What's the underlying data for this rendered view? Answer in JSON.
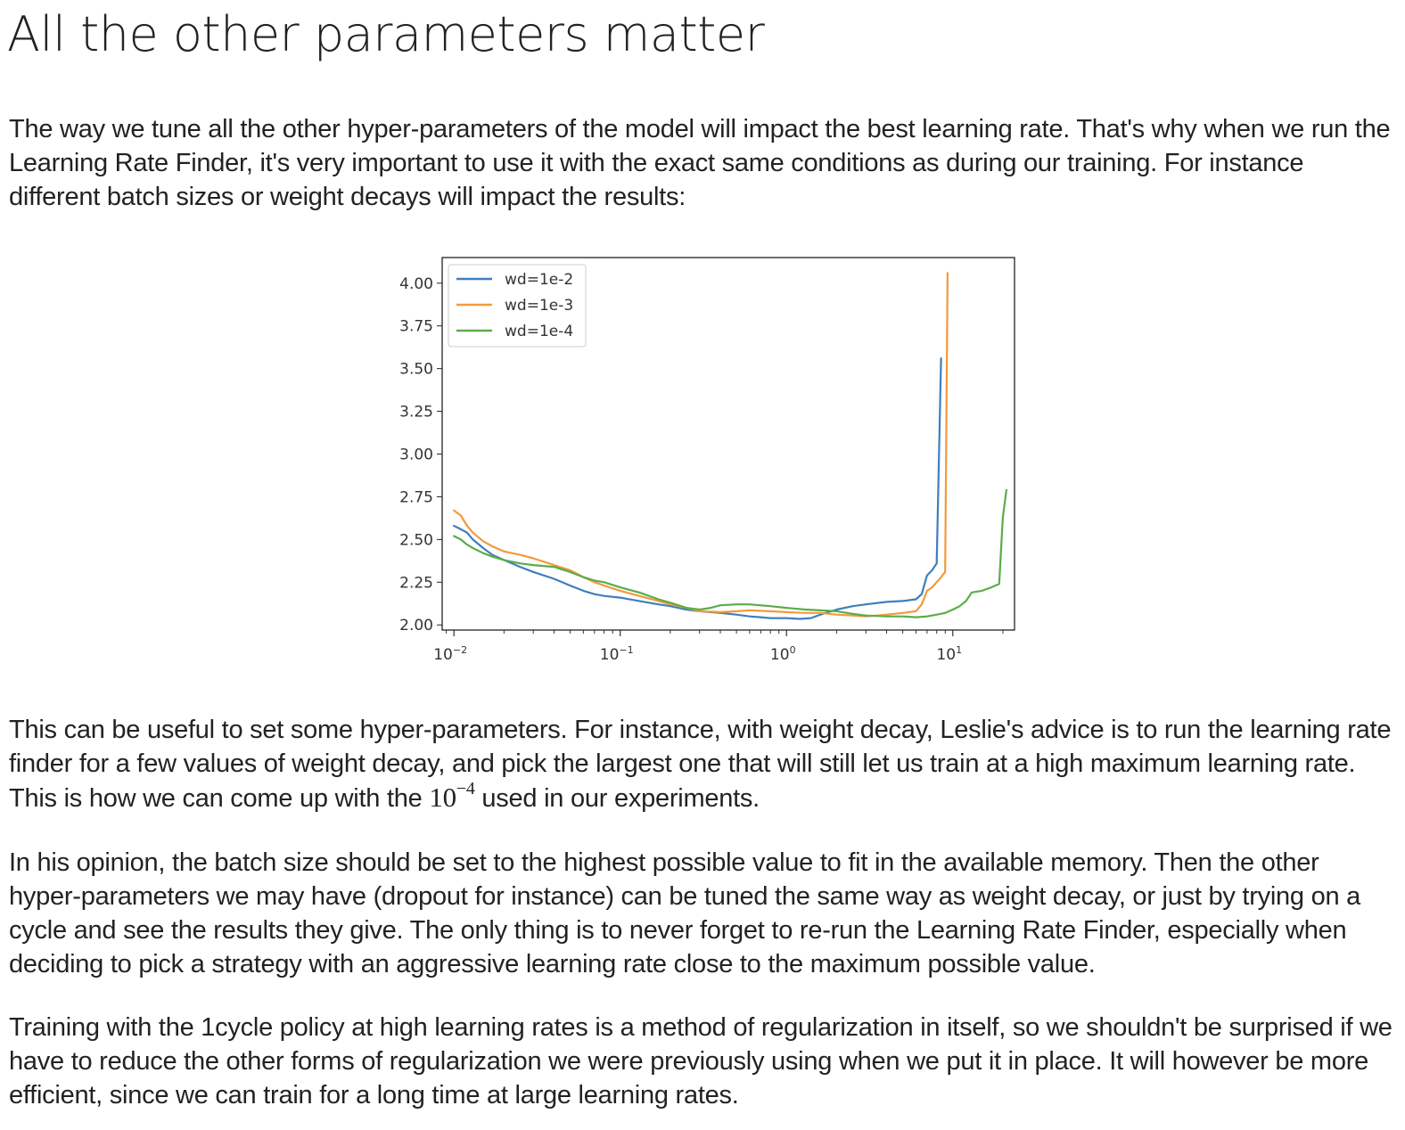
{
  "heading": "All the other parameters matter",
  "paragraphs": {
    "p1": "The way we tune all the other hyper-parameters of the model will impact the best learning rate. That's why when we run the Learning Rate Finder, it's very important to use it with the exact same conditions as during our training. For instance different batch sizes or weight decays will impact the results:",
    "p2_before": "This can be useful to set some hyper-parameters. For instance, with weight decay, Leslie's advice is to run the learning rate finder for a few values of weight decay, and pick the largest one that will still let us train at a high maximum learning rate. This is how we can come up with the ",
    "p2_math_base": "10",
    "p2_math_exp": "−4",
    "p2_after": " used in our experiments.",
    "p3": "In his opinion, the batch size should be set to the highest possible value to fit in the available memory. Then the other hyper-parameters we may have (dropout for instance) can be tuned the same way as weight decay, or just by trying on a cycle and see the results they give. The only thing is to never forget to re-run the Learning Rate Finder, especially when deciding to pick a strategy with an aggressive learning rate close to the maximum possible value.",
    "p4": "Training with the 1cycle policy at high learning rates is a method of regularization in itself, so we shouldn't be surprised if we have to reduce the other forms of regularization we were previously using when we put it in place. It will however be more efficient, since we can train for a long time at large learning rates."
  },
  "chart_data": {
    "type": "line",
    "title": "",
    "xlabel": "",
    "ylabel": "",
    "xscale": "log",
    "xlim": [
      0.0085,
      23.5
    ],
    "ylim": [
      1.97,
      4.15
    ],
    "yticks": [
      2.0,
      2.25,
      2.5,
      2.75,
      3.0,
      3.25,
      3.5,
      3.75,
      4.0
    ],
    "ytick_labels": [
      "2.00",
      "2.25",
      "2.50",
      "2.75",
      "3.00",
      "3.25",
      "3.50",
      "3.75",
      "4.00"
    ],
    "xticks": [
      0.01,
      0.1,
      1,
      10
    ],
    "xtick_labels": [
      {
        "base": "10",
        "exp": "−2"
      },
      {
        "base": "10",
        "exp": "−1"
      },
      {
        "base": "10",
        "exp": "0"
      },
      {
        "base": "10",
        "exp": "1"
      }
    ],
    "grid": false,
    "legend": "upper-left",
    "series": [
      {
        "name": "wd=1e-2",
        "color": "#3f7fbd",
        "x": [
          0.01,
          0.011,
          0.012,
          0.013,
          0.015,
          0.017,
          0.02,
          0.025,
          0.03,
          0.04,
          0.05,
          0.06,
          0.07,
          0.08,
          0.1,
          0.13,
          0.17,
          0.2,
          0.25,
          0.3,
          0.4,
          0.5,
          0.6,
          0.7,
          0.8,
          1.0,
          1.2,
          1.4,
          1.6,
          2.0,
          2.5,
          3.0,
          4.0,
          5.0,
          6.0,
          6.5,
          7.0,
          7.5,
          8.0,
          8.5
        ],
        "y": [
          2.58,
          2.56,
          2.54,
          2.5,
          2.45,
          2.41,
          2.38,
          2.34,
          2.31,
          2.27,
          2.23,
          2.2,
          2.18,
          2.17,
          2.16,
          2.14,
          2.12,
          2.11,
          2.09,
          2.08,
          2.07,
          2.06,
          2.05,
          2.045,
          2.04,
          2.04,
          2.035,
          2.04,
          2.06,
          2.09,
          2.11,
          2.12,
          2.135,
          2.14,
          2.15,
          2.18,
          2.29,
          2.32,
          2.36,
          3.56
        ]
      },
      {
        "name": "wd=1e-3",
        "color": "#f39a3a",
        "x": [
          0.01,
          0.011,
          0.012,
          0.013,
          0.015,
          0.017,
          0.02,
          0.025,
          0.03,
          0.04,
          0.05,
          0.06,
          0.07,
          0.08,
          0.1,
          0.13,
          0.17,
          0.2,
          0.25,
          0.3,
          0.4,
          0.5,
          0.6,
          0.8,
          1.0,
          1.3,
          1.6,
          2.0,
          2.5,
          3.0,
          3.5,
          4.0,
          5.0,
          6.0,
          6.5,
          7.0,
          7.5,
          8.0,
          8.5,
          9.0,
          9.3
        ],
        "y": [
          2.67,
          2.64,
          2.58,
          2.54,
          2.49,
          2.46,
          2.43,
          2.41,
          2.39,
          2.35,
          2.32,
          2.28,
          2.25,
          2.23,
          2.2,
          2.17,
          2.14,
          2.12,
          2.1,
          2.08,
          2.075,
          2.08,
          2.085,
          2.08,
          2.075,
          2.07,
          2.07,
          2.06,
          2.055,
          2.05,
          2.055,
          2.06,
          2.07,
          2.08,
          2.12,
          2.2,
          2.22,
          2.25,
          2.28,
          2.31,
          4.06
        ]
      },
      {
        "name": "wd=1e-4",
        "color": "#5aac4a",
        "x": [
          0.01,
          0.011,
          0.012,
          0.013,
          0.015,
          0.017,
          0.02,
          0.025,
          0.03,
          0.04,
          0.05,
          0.06,
          0.07,
          0.08,
          0.1,
          0.13,
          0.17,
          0.2,
          0.25,
          0.3,
          0.35,
          0.4,
          0.5,
          0.6,
          0.8,
          1.0,
          1.3,
          1.6,
          2.0,
          2.5,
          3.0,
          4.0,
          5.0,
          6.0,
          7.0,
          8.0,
          9.0,
          10.0,
          11.0,
          12.0,
          13.0,
          15.0,
          17.0,
          19.0,
          20.0,
          21.0
        ],
        "y": [
          2.52,
          2.5,
          2.47,
          2.45,
          2.42,
          2.4,
          2.38,
          2.36,
          2.35,
          2.34,
          2.31,
          2.28,
          2.26,
          2.25,
          2.22,
          2.19,
          2.15,
          2.13,
          2.1,
          2.09,
          2.1,
          2.115,
          2.12,
          2.12,
          2.11,
          2.1,
          2.09,
          2.085,
          2.08,
          2.065,
          2.055,
          2.05,
          2.05,
          2.045,
          2.05,
          2.06,
          2.07,
          2.09,
          2.11,
          2.14,
          2.19,
          2.2,
          2.22,
          2.24,
          2.63,
          2.79
        ]
      }
    ]
  }
}
